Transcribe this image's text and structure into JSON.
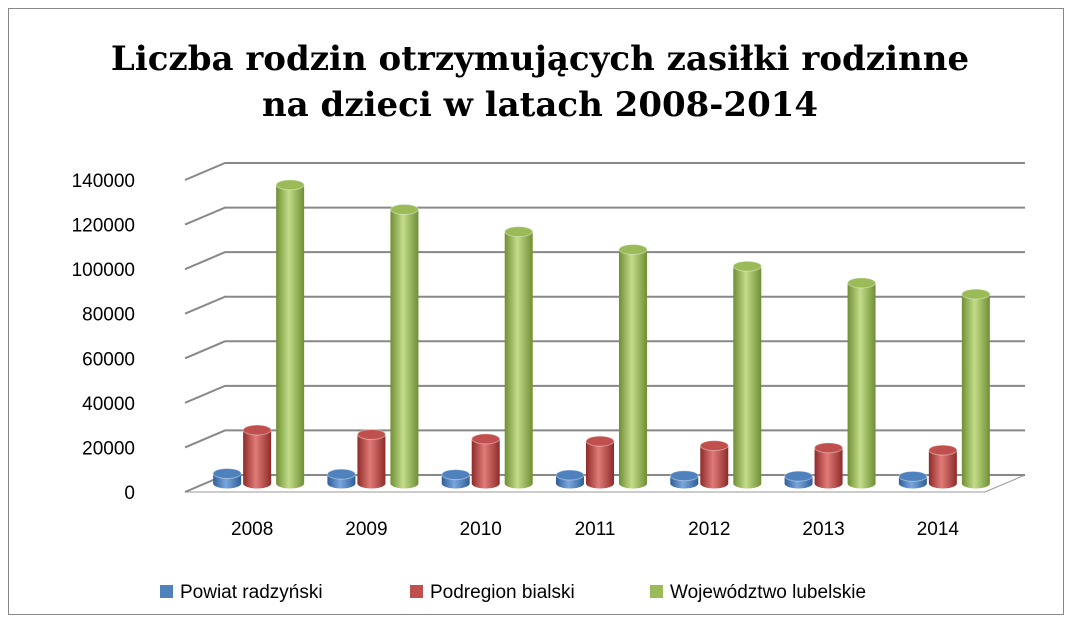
{
  "chart_data": {
    "type": "bar3d",
    "title": "Liczba rodzin otrzymujących zasiłki rodzinne na dzieci w latach 2008-2014",
    "categories": [
      "2008",
      "2009",
      "2010",
      "2011",
      "2012",
      "2013",
      "2014"
    ],
    "series": [
      {
        "name": "Powiat radzyński",
        "color": "#4f81bd",
        "values": [
          4500,
          4200,
          4000,
          3800,
          3500,
          3300,
          3200
        ]
      },
      {
        "name": "Podregion bialski",
        "color": "#c0504d",
        "values": [
          24000,
          22000,
          20000,
          19000,
          17000,
          16000,
          15000
        ]
      },
      {
        "name": "Województwo lubelskie",
        "color": "#9bbb59",
        "values": [
          134000,
          123000,
          113000,
          105000,
          97500,
          90000,
          85000
        ]
      }
    ],
    "ylim": [
      0,
      140000
    ],
    "yticks": [
      0,
      20000,
      40000,
      60000,
      80000,
      100000,
      120000,
      140000
    ],
    "grid": true,
    "legend": "bottom"
  }
}
